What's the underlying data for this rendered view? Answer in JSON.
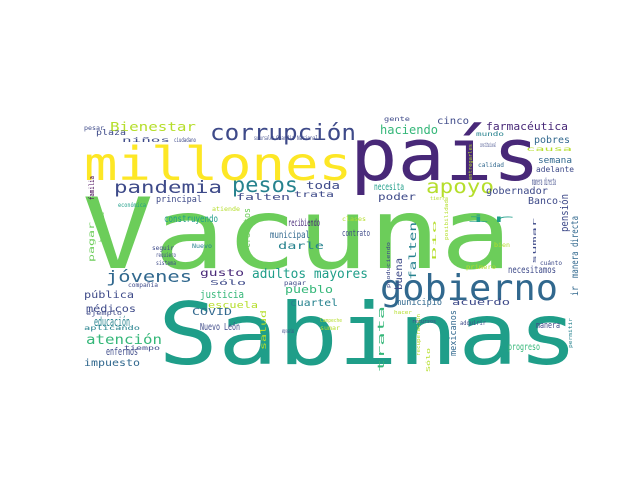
{
  "colors": {
    "background": "#ffffff",
    "green": "#6ccd5a",
    "teal": "#1f9e89",
    "blue": "#31688e",
    "indigo": "#3e4a89",
    "purple": "#482878",
    "dark": "#440154",
    "lime": "#b5de2b",
    "yellow": "#fde725",
    "mint": "#35b779",
    "cyan": "#26828e"
  },
  "words": [
    "Vacuna",
    "Sabinas",
    "país",
    "millones",
    "gobierno",
    "corrupción",
    "pesos",
    "pandemia",
    "apoyo",
    "jóvenes",
    "adultos mayores",
    "Bienestar",
    "farmacéutica",
    "haciendo",
    "cinco",
    "pobres",
    "semana",
    "adelante",
    "calidad",
    "gobernador",
    "Banco",
    "pensión",
    "manera directa",
    "ir",
    "toda",
    "necesita",
    "poder",
    "buena",
    "falten",
    "trata",
    "principal",
    "construyendo",
    "recibiendo",
    "municipal",
    "contrato",
    "créditos",
    "darle",
    "pueblo",
    "gusto",
    "justicia",
    "escuela",
    "cuartel",
    "pública",
    "médicos",
    "educación",
    "atención",
    "enfermos",
    "impuesto",
    "COVID",
    "Nuevo León",
    "salud",
    "municipio",
    "acuerdo",
    "manera",
    "progreso",
    "mexicanos",
    "necesitamos",
    "Sólo",
    "pagar",
    "hospitales",
    "familia",
    "económica",
    "compañía",
    "seguir",
    "requiero",
    "sistema",
    "Nuevo",
    "ejemplo",
    "aplicando",
    "tiempo",
    "plaza",
    "pesar",
    "niños",
    "sucursales",
    "Guardia Nacional",
    "ciudadano",
    "gente",
    "mundo",
    "constitucional",
    "causa",
    "instalaciones",
    "cuánto",
    "recibir",
    "primero",
    "bien",
    "trabajadores",
    "empresarios",
    "sumar",
    "Campeche",
    "permitir",
    "plan",
    "demostrando",
    "produciendo",
    "Dio",
    "dosis",
    "vacunar",
    "recursos",
    "adquirir",
    "entregarles",
    "posibilidad",
    "clases",
    "atiende",
    "recuperación",
    "tierra",
    "hacer"
  ]
}
